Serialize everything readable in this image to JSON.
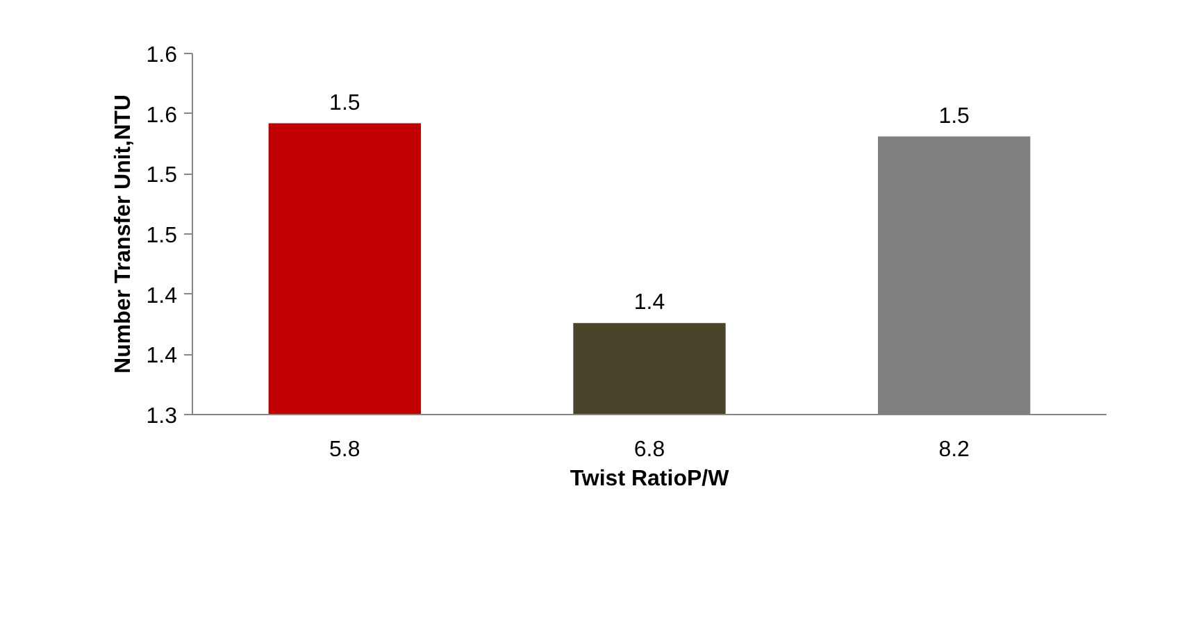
{
  "chart_data": {
    "type": "bar",
    "xlabel": "Twist RatioP/W",
    "ylabel": "Number Transfer Unit,NTU",
    "categories": [
      "5.8",
      "6.8",
      "8.2"
    ],
    "values": [
      1.542,
      1.376,
      1.531
    ],
    "colors": [
      "#c00000",
      "#4a442a",
      "#7f7f7f"
    ],
    "value_labels": [
      "1.5",
      "1.4",
      "1.5"
    ],
    "ylim": [
      1.3,
      1.6
    ],
    "yticks": [
      {
        "value": 1.3,
        "label": "1.3"
      },
      {
        "value": 1.35,
        "label": "1.4"
      },
      {
        "value": 1.4,
        "label": "1.4"
      },
      {
        "value": 1.45,
        "label": "1.5"
      },
      {
        "value": 1.5,
        "label": "1.5"
      },
      {
        "value": 1.55,
        "label": "1.6"
      },
      {
        "value": 1.6,
        "label": "1.6"
      }
    ],
    "grid": false
  }
}
